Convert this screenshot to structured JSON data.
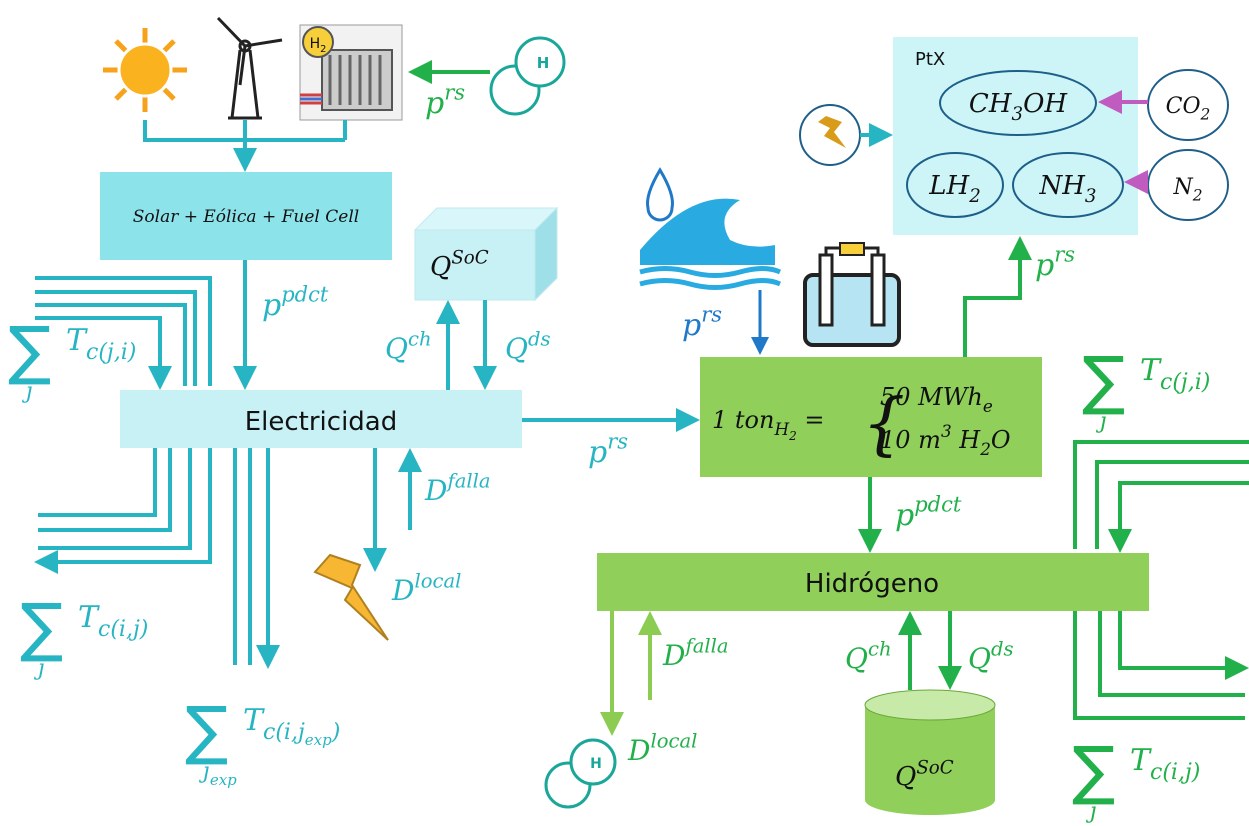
{
  "icons": {
    "h2_badge": {
      "base": "H",
      "sub": "2"
    },
    "h_molecule": "H"
  },
  "electricity": {
    "source_box": "Solar + Eólica + Fuel Cell",
    "fuel_cell_input": {
      "base": "p",
      "sup": "rs"
    },
    "production": {
      "base": "p",
      "sup": "pdct"
    },
    "storage": {
      "base": "Q",
      "sup": "SoC"
    },
    "charge": {
      "base": "Q",
      "sup": "ch"
    },
    "discharge": {
      "base": "Q",
      "sup": "ds"
    },
    "node": "Electricidad",
    "failure": {
      "base": "D",
      "sup": "falla"
    },
    "demand": {
      "base": "D",
      "sup": "local"
    },
    "imports": {
      "sum": "∑",
      "index": "j",
      "base": "T",
      "sub": "c(j,i)"
    },
    "exports": {
      "sum": "∑",
      "index": "j",
      "base": "T",
      "sub": "c(i,j)"
    },
    "external_exports": {
      "sum": "∑",
      "index": "j",
      "index_sub": "exp",
      "base": "T",
      "sub": "c(i,j",
      "sub_sub": "exp",
      "sub_end": ")"
    },
    "to_electrolysis": {
      "base": "p",
      "sup": "rs"
    }
  },
  "electrolysis": {
    "water_input": {
      "base": "p",
      "sup": "rs"
    },
    "equation": {
      "lhs": {
        "base": "1 ton",
        "sub": "H",
        "sub_sub": "2",
        "tail": " ="
      },
      "brace": "{",
      "line1": {
        "base": "50 MWh",
        "sub": "e"
      },
      "line2": {
        "base": "10 m",
        "sup": "3",
        "mid": " H",
        "sub": "2",
        "tail": "O"
      }
    },
    "to_ptx": {
      "base": "p",
      "sup": "rs"
    },
    "production": {
      "base": "p",
      "sup": "pdct"
    }
  },
  "ptx": {
    "title": "PtX",
    "methanol": {
      "base": "CH",
      "sub": "3",
      "tail": "OH"
    },
    "co2": {
      "base": "CO",
      "sub": "2"
    },
    "lh2": {
      "base": "LH",
      "sub": "2"
    },
    "nh3": {
      "base": "NH",
      "sub": "3"
    },
    "n2": {
      "base": "N",
      "sub": "2"
    }
  },
  "hydrogen": {
    "node": "Hidrógeno",
    "storage": {
      "base": "Q",
      "sup": "SoC"
    },
    "charge": {
      "base": "Q",
      "sup": "ch"
    },
    "discharge": {
      "base": "Q",
      "sup": "ds"
    },
    "failure": {
      "base": "D",
      "sup": "falla"
    },
    "demand": {
      "base": "D",
      "sup": "local"
    },
    "imports": {
      "sum": "∑",
      "index": "j",
      "base": "T",
      "sub": "c(j,i)"
    },
    "exports": {
      "sum": "∑",
      "index": "j",
      "base": "T",
      "sub": "c(i,j)"
    }
  }
}
